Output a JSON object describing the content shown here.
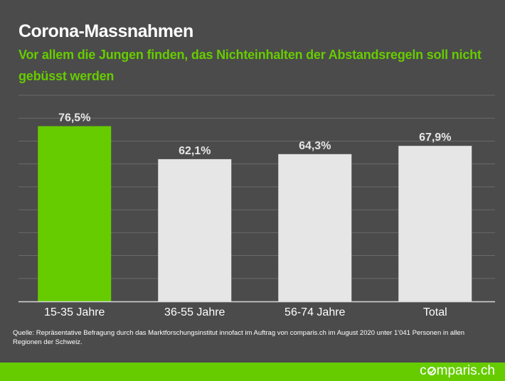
{
  "header": {
    "title": "Corona-Massnahmen",
    "subtitle": "Vor allem die Jungen finden, das Nichteinhalten der Abstandsregeln soll nicht gebüsst werden"
  },
  "colors": {
    "background": "#4b4b4b",
    "highlight": "#66cc00",
    "bar": "#e6e6e6",
    "gridline": "#6a6a6a",
    "label": "#ffffff"
  },
  "chart_data": {
    "type": "bar",
    "title": "Corona-Massnahmen",
    "subtitle": "Vor allem die Jungen finden, das Nichteinhalten der Abstandsregeln soll nicht gebüsst werden",
    "categories": [
      "15-35 Jahre",
      "36-55 Jahre",
      "56-74 Jahre",
      "Total"
    ],
    "values": [
      76.5,
      62.1,
      64.3,
      67.9
    ],
    "value_labels": [
      "76,5%",
      "62,1%",
      "64,3%",
      "67,9%"
    ],
    "highlight_index": 0,
    "xlabel": "",
    "ylabel": "",
    "ylim": [
      0,
      90
    ],
    "grid_step": 10,
    "grid": true,
    "y_tick_labels_shown": false,
    "legend": "none"
  },
  "footer": {
    "source": "Quelle: Repräsentative Befragung durch das Marktforschungsinstitut innofact im Auftrag von comparis.ch im August 2020 unter 1'041 Personen in allen Regionen der Schweiz.",
    "logo_pre": "c",
    "logo_post": "mparis.ch"
  }
}
